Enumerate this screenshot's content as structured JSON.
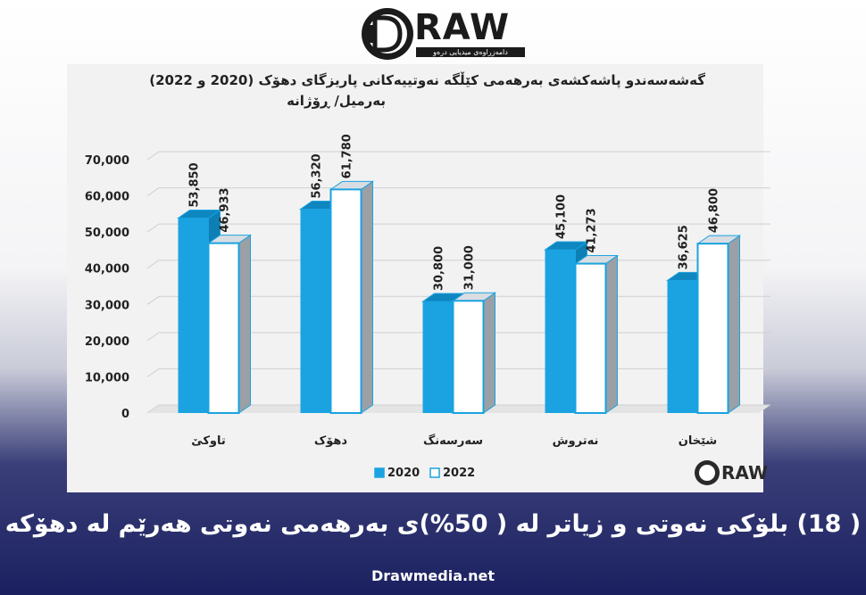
{
  "branding": {
    "logo_text": "RAW",
    "logo_tagline": "دامەزراوەی میدیایی درەو",
    "watermark_text": "RAW"
  },
  "headline": "( 18) بلۆكی نەوتی و زیاتر لە ( 50%)ی بەرهەمی نەوتی هەرێم لە دهۆكە",
  "site_url": "Drawmedia.net",
  "colors": {
    "series_2020": "#1aa3e0",
    "series_2022": "#ffffff",
    "bar_side": "#9aa0a6",
    "outline": "#1aa3e0"
  },
  "chart_data": {
    "type": "bar",
    "title": "گەشەسەندو پاشەكشەی بەرهەمی كێڵگە نەوتییەكانی پاریزگای دهۆک (2020 و 2022)",
    "subtitle": "بەرمیل/ ڕۆژانە",
    "xlabel": "",
    "ylabel": "",
    "ylim": [
      0,
      70000
    ],
    "yticks": [
      "0",
      "10,000",
      "20,000",
      "30,000",
      "40,000",
      "50,000",
      "60,000",
      "70,000"
    ],
    "grid": true,
    "legend_position": "bottom",
    "categories": [
      "تاوكێ",
      "دهۆک",
      "سەرسەنگ",
      "نەتروش",
      "شێخان"
    ],
    "series": [
      {
        "name": "2020",
        "values": [
          53850,
          56320,
          30800,
          45100,
          36625
        ],
        "labels": [
          "53,850",
          "56,320",
          "30,800",
          "45,100",
          "36,625"
        ]
      },
      {
        "name": "2022",
        "values": [
          46933,
          61780,
          31000,
          41273,
          46800
        ],
        "labels": [
          "46,933",
          "61,780",
          "31,000",
          "41,273",
          "46,800"
        ]
      }
    ]
  }
}
